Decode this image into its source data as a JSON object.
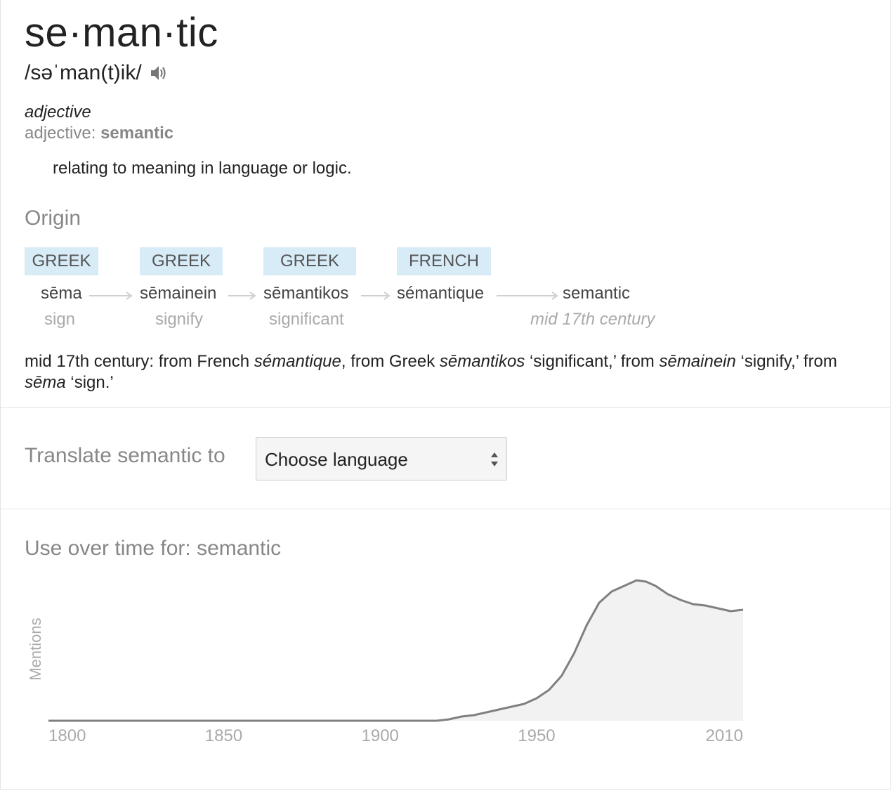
{
  "headword": "se·man·tic",
  "pronunciation": "/səˈman(t)ik/",
  "icons": {
    "speaker": "speaker-icon",
    "select_arrows": "updown-arrows-icon"
  },
  "part_of_speech": "adjective",
  "pos_line": {
    "prefix": "adjective: ",
    "word": "semantic"
  },
  "definition": "relating to meaning in language or logic.",
  "origin": {
    "title": "Origin",
    "chain": [
      {
        "lang": "GREEK",
        "word": "sēma",
        "gloss": "sign"
      },
      {
        "lang": "GREEK",
        "word": "sēmainein",
        "gloss": "signify"
      },
      {
        "lang": "GREEK",
        "word": "sēmantikos",
        "gloss": "significant"
      },
      {
        "lang": "FRENCH",
        "word": "sémantique",
        "gloss": ""
      },
      {
        "lang": "",
        "word": "semantic",
        "gloss": "mid 17th century"
      }
    ],
    "text_parts": [
      {
        "t": "mid 17th century: from French ",
        "i": false
      },
      {
        "t": "sémantique",
        "i": true
      },
      {
        "t": ", from Greek ",
        "i": false
      },
      {
        "t": "sēmantikos",
        "i": true
      },
      {
        "t": " ‘significant,’ from ",
        "i": false
      },
      {
        "t": "sēmainein",
        "i": true
      },
      {
        "t": " ‘signify,’ from ",
        "i": false
      },
      {
        "t": "sēma",
        "i": true
      },
      {
        "t": " ‘sign.’",
        "i": false
      }
    ]
  },
  "translate": {
    "label": "Translate semantic to",
    "selected": "Choose language"
  },
  "usage": {
    "title": "Use over time for: semantic"
  },
  "chart_data": {
    "type": "area",
    "ylabel": "Mentions",
    "xlabel": "",
    "x_ticks": [
      1800,
      1850,
      1900,
      1950,
      2010
    ],
    "xlim": [
      1794,
      2016
    ],
    "ylim": [
      0,
      1
    ],
    "grid": false,
    "color": "#808080",
    "fill": "#f2f2f2",
    "points": [
      [
        1794,
        0.0
      ],
      [
        1900,
        0.0
      ],
      [
        1918,
        0.0
      ],
      [
        1922,
        0.01
      ],
      [
        1926,
        0.03
      ],
      [
        1930,
        0.04
      ],
      [
        1934,
        0.06
      ],
      [
        1938,
        0.08
      ],
      [
        1942,
        0.1
      ],
      [
        1946,
        0.12
      ],
      [
        1950,
        0.16
      ],
      [
        1954,
        0.22
      ],
      [
        1958,
        0.32
      ],
      [
        1962,
        0.48
      ],
      [
        1966,
        0.68
      ],
      [
        1970,
        0.84
      ],
      [
        1974,
        0.92
      ],
      [
        1978,
        0.96
      ],
      [
        1982,
        1.0
      ],
      [
        1985,
        0.99
      ],
      [
        1988,
        0.96
      ],
      [
        1992,
        0.9
      ],
      [
        1996,
        0.86
      ],
      [
        2000,
        0.83
      ],
      [
        2004,
        0.82
      ],
      [
        2008,
        0.8
      ],
      [
        2012,
        0.78
      ],
      [
        2016,
        0.79
      ]
    ]
  }
}
